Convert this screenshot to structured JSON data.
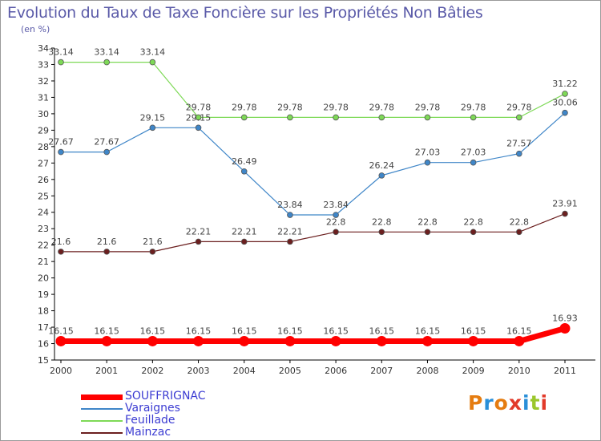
{
  "title": "Evolution du Taux de Taxe Foncière sur les Propriétés Non Bâties",
  "unit_label": "(en %)",
  "logo": {
    "text": "Proxiti",
    "colors": [
      "#e57c10",
      "#2a8fd8",
      "#e57c10",
      "#e23a2a",
      "#2a8fd8",
      "#9bc72c",
      "#e23a2a"
    ]
  },
  "chart_data": {
    "type": "line",
    "title": "Evolution du Taux de Taxe Foncière sur les Propriétés Non Bâties",
    "xlabel": "",
    "ylabel": "(en %)",
    "x": [
      "2000",
      "2001",
      "2002",
      "2003",
      "2004",
      "2005",
      "2006",
      "2007",
      "2008",
      "2009",
      "2010",
      "2011"
    ],
    "ylim": [
      15,
      34
    ],
    "yticks": [
      15,
      16,
      17,
      18,
      19,
      20,
      21,
      22,
      23,
      24,
      25,
      26,
      27,
      28,
      29,
      30,
      31,
      32,
      33,
      34
    ],
    "grid": false,
    "legend_position": "bottom-left",
    "series": [
      {
        "name": "SOUFFRIGNAC",
        "color": "#ff0000",
        "values": [
          16.15,
          16.15,
          16.15,
          16.15,
          16.15,
          16.15,
          16.15,
          16.15,
          16.15,
          16.15,
          16.15,
          16.93
        ],
        "labels": [
          "16.15",
          "16.15",
          "16.15",
          "16.15",
          "16.15",
          "16.15",
          "16.15",
          "16.15",
          "16.15",
          "16.15",
          "16.15",
          "16.93"
        ]
      },
      {
        "name": "Varaignes",
        "color": "#3f86c8",
        "values": [
          27.67,
          27.67,
          29.15,
          29.15,
          26.49,
          23.84,
          23.84,
          26.24,
          27.03,
          27.03,
          27.57,
          30.06
        ],
        "labels": [
          "27.67",
          "27.67",
          "29.15",
          "29.15",
          "26.49",
          "23.84",
          "23.84",
          "26.24",
          "27.03",
          "27.03",
          "27.57",
          "30.06"
        ]
      },
      {
        "name": "Feuillade",
        "color": "#7ed957",
        "values": [
          33.14,
          33.14,
          33.14,
          29.78,
          29.78,
          29.78,
          29.78,
          29.78,
          29.78,
          29.78,
          29.78,
          31.22
        ],
        "labels": [
          "33.14",
          "33.14",
          "33.14",
          "29.78",
          "29.78",
          "29.78",
          "29.78",
          "29.78",
          "29.78",
          "29.78",
          "29.78",
          "31.22"
        ]
      },
      {
        "name": "Mainzac",
        "color": "#6b1f1f",
        "values": [
          21.6,
          21.6,
          21.6,
          22.21,
          22.21,
          22.21,
          22.8,
          22.8,
          22.8,
          22.8,
          22.8,
          23.91
        ],
        "labels": [
          "21.6",
          "21.6",
          "21.6",
          "22.21",
          "22.21",
          "22.21",
          "22.8",
          "22.8",
          "22.8",
          "22.8",
          "22.8",
          "23.91"
        ]
      }
    ]
  }
}
